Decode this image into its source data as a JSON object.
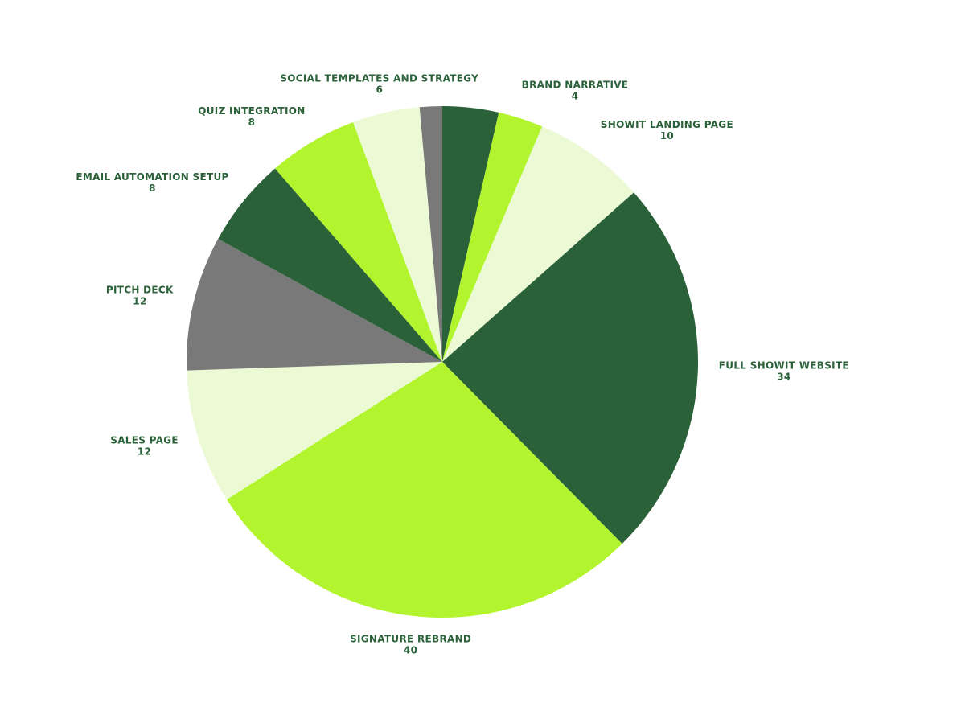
{
  "chart_data": {
    "type": "pie",
    "categories": [
      null,
      "BRAND NARRATIVE",
      "SHOWIT LANDING PAGE",
      "FULL SHOWIT WEBSITE",
      "SIGNATURE REBRAND",
      "SALES PAGE",
      "PITCH DECK",
      "EMAIL AUTOMATION SETUP",
      "QUIZ INTEGRATION",
      "SOCIAL TEMPLATES AND STRATEGY",
      null
    ],
    "values": [
      5,
      4,
      10,
      34,
      40,
      12,
      12,
      8,
      8,
      6,
      2
    ],
    "colors": [
      "#2a6139",
      "#b2f52e",
      "#ebfad5",
      "#2a6139",
      "#b2f52e",
      "#ebfad5",
      "#79797a",
      "#2a6139",
      "#b2f52e",
      "#ebfad5",
      "#79797a"
    ]
  }
}
